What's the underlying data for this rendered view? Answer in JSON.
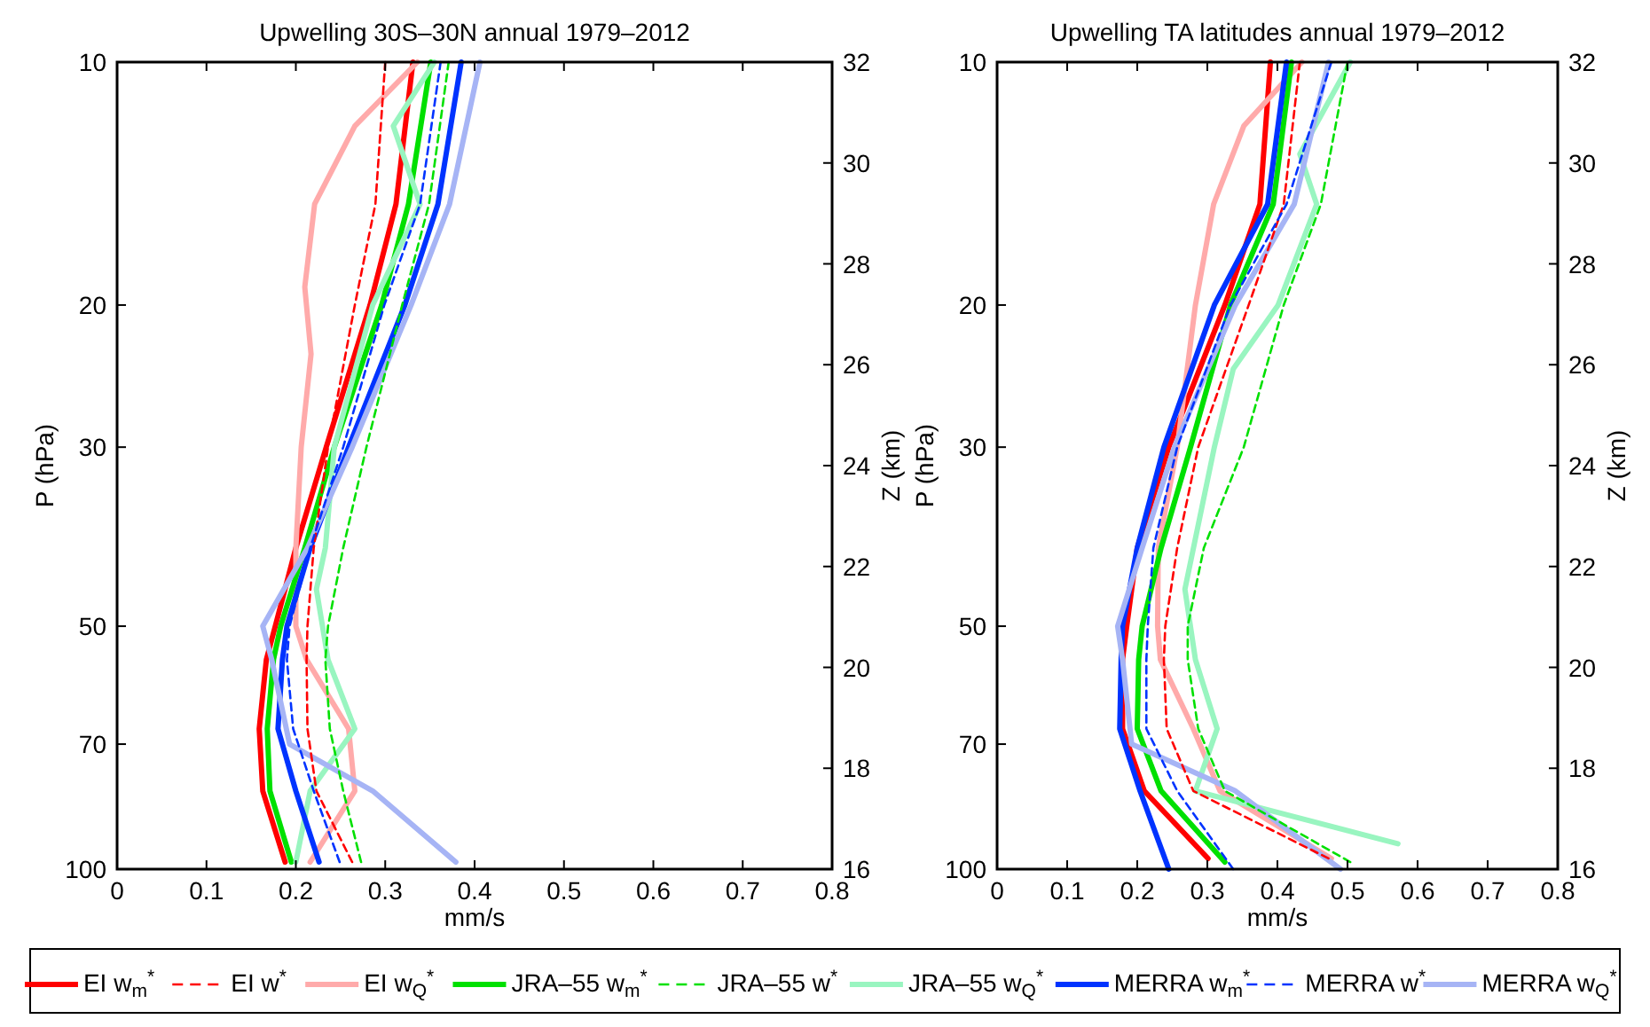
{
  "chart_data": [
    {
      "type": "line",
      "title": "Upwelling 30S–30N annual 1979–2012",
      "xlabel": "mm/s",
      "ylabel": "P (hPa)",
      "y2label": "Z (km)",
      "xlim": [
        0,
        0.8
      ],
      "xticks": [
        0,
        0.1,
        0.2,
        0.3,
        0.4,
        0.5,
        0.6,
        0.7,
        0.8
      ],
      "ylim": [
        100,
        10
      ],
      "yticks": [
        10,
        20,
        30,
        50,
        70,
        100
      ],
      "y2lim": [
        16,
        32
      ],
      "y2ticks": [
        16,
        18,
        20,
        22,
        24,
        26,
        28,
        30,
        32
      ],
      "log": "y",
      "legend": "bottom",
      "grid": false,
      "series": [
        {
          "name": "EI w$_{m}$$^{*}$",
          "color": "#ff0000",
          "line_style": "solid",
          "x": [
            0.331,
            0.312,
            0.283,
            0.234,
            0.2,
            0.177,
            0.167,
            0.159,
            0.163,
            0.188
          ],
          "values": [
            10,
            15,
            20,
            30,
            40,
            50,
            55,
            67,
            80,
            98
          ]
        },
        {
          "name": "EI w$^{*}$",
          "color": "#ff0000",
          "line_style": "dashed",
          "x": [
            0.3,
            0.289,
            0.266,
            0.236,
            0.22,
            0.213,
            0.212,
            0.213,
            0.223,
            0.263
          ],
          "values": [
            10,
            15,
            20,
            30,
            40,
            50,
            55,
            67,
            80,
            98
          ]
        },
        {
          "name": "EI w$_{Q}$$^{*}$",
          "color": "#ffaaaa",
          "line_style": "solid",
          "x": [
            0.336,
            0.266,
            0.221,
            0.21,
            0.217,
            0.206,
            0.2,
            0.2,
            0.212,
            0.259,
            0.266,
            0.216
          ],
          "values": [
            10,
            12,
            15,
            19,
            23,
            30,
            40,
            50,
            55,
            67,
            80,
            98
          ]
        },
        {
          "name": "JRA–55 w$_{m}$$^{*}$",
          "color": "#00e000",
          "line_style": "solid",
          "x": [
            0.351,
            0.326,
            0.296,
            0.243,
            0.21,
            0.183,
            0.175,
            0.168,
            0.171,
            0.195
          ],
          "values": [
            10,
            15,
            20,
            30,
            40,
            50,
            55,
            67,
            80,
            98
          ]
        },
        {
          "name": "JRA–55 w$^{*}$",
          "color": "#00e000",
          "line_style": "dashed",
          "x": [
            0.371,
            0.349,
            0.319,
            0.279,
            0.253,
            0.236,
            0.233,
            0.238,
            0.253,
            0.273
          ],
          "values": [
            10,
            15,
            20,
            30,
            40,
            50,
            55,
            67,
            80,
            98
          ]
        },
        {
          "name": "JRA–55 w$_{Q}$$^{*}$",
          "color": "#99f5c0",
          "line_style": "solid",
          "x": [
            0.355,
            0.309,
            0.339,
            0.286,
            0.243,
            0.233,
            0.223,
            0.236,
            0.266,
            0.216,
            0.2
          ],
          "values": [
            10,
            12,
            15,
            20,
            30,
            40,
            45,
            55,
            67,
            80,
            98
          ]
        },
        {
          "name": "MERRA w$_{m}$$^{*}$",
          "color": "#0033ff",
          "line_style": "solid",
          "x": [
            0.385,
            0.359,
            0.322,
            0.259,
            0.216,
            0.19,
            0.185,
            0.18,
            0.2,
            0.226
          ],
          "values": [
            10,
            15,
            20,
            30,
            40,
            50,
            55,
            67,
            80,
            98
          ]
        },
        {
          "name": "MERRA w$^{*}$",
          "color": "#0033ff",
          "line_style": "dashed",
          "x": [
            0.362,
            0.339,
            0.299,
            0.253,
            0.216,
            0.193,
            0.19,
            0.197,
            0.22,
            0.249
          ],
          "values": [
            10,
            15,
            20,
            30,
            40,
            50,
            55,
            67,
            80,
            98
          ]
        },
        {
          "name": "MERRA w$_{Q}$$^{*}$",
          "color": "#a6b4f5",
          "line_style": "solid",
          "x": [
            0.406,
            0.372,
            0.329,
            0.263,
            0.213,
            0.163,
            0.173,
            0.193,
            0.286,
            0.379
          ],
          "values": [
            10,
            15,
            20,
            30,
            40,
            50,
            55,
            70,
            80,
            98
          ]
        }
      ]
    },
    {
      "type": "line",
      "title": "Upwelling TA latitudes annual 1979–2012",
      "xlabel": "mm/s",
      "ylabel": "P (hPa)",
      "y2label": "Z (km)",
      "xlim": [
        0,
        0.8
      ],
      "xticks": [
        0,
        0.1,
        0.2,
        0.3,
        0.4,
        0.5,
        0.6,
        0.7,
        0.8
      ],
      "ylim": [
        100,
        10
      ],
      "yticks": [
        10,
        20,
        30,
        50,
        70,
        100
      ],
      "y2lim": [
        16,
        32
      ],
      "y2ticks": [
        16,
        18,
        20,
        22,
        24,
        26,
        28,
        30,
        32
      ],
      "log": "y",
      "grid": false,
      "series": [
        {
          "color": "#ff0000",
          "line_style": "solid",
          "x": [
            0.39,
            0.375,
            0.325,
            0.245,
            0.2,
            0.185,
            0.179,
            0.179,
            0.21,
            0.301
          ],
          "values": [
            10,
            15,
            20,
            30,
            40,
            50,
            55,
            67,
            80,
            97
          ]
        },
        {
          "color": "#ff0000",
          "line_style": "dashed",
          "x": [
            0.432,
            0.409,
            0.359,
            0.287,
            0.257,
            0.24,
            0.238,
            0.242,
            0.28,
            0.473
          ],
          "values": [
            10,
            15,
            20,
            30,
            40,
            50,
            55,
            67,
            80,
            97
          ]
        },
        {
          "color": "#ffaaaa",
          "line_style": "solid",
          "x": [
            0.435,
            0.352,
            0.309,
            0.283,
            0.257,
            0.23,
            0.229,
            0.233,
            0.28,
            0.318,
            0.477
          ],
          "values": [
            10,
            12,
            15,
            20,
            30,
            40,
            50,
            55,
            67,
            80,
            97
          ]
        },
        {
          "color": "#00e000",
          "line_style": "solid",
          "x": [
            0.42,
            0.394,
            0.333,
            0.276,
            0.234,
            0.207,
            0.202,
            0.2,
            0.234,
            0.325
          ],
          "values": [
            10,
            15,
            20,
            30,
            40,
            50,
            55,
            67,
            80,
            98
          ]
        },
        {
          "color": "#00e000",
          "line_style": "dashed",
          "x": [
            0.5,
            0.462,
            0.409,
            0.352,
            0.295,
            0.272,
            0.272,
            0.287,
            0.325,
            0.504
          ],
          "values": [
            10,
            15,
            20,
            30,
            40,
            50,
            55,
            67,
            80,
            98
          ]
        },
        {
          "color": "#99f5c0",
          "line_style": "solid",
          "x": [
            0.504,
            0.432,
            0.456,
            0.401,
            0.337,
            0.31,
            0.268,
            0.283,
            0.314,
            0.283,
            0.572
          ],
          "values": [
            10,
            13,
            15,
            20,
            24,
            30,
            45,
            55,
            67,
            80,
            93
          ]
        },
        {
          "color": "#0033ff",
          "line_style": "solid",
          "x": [
            0.413,
            0.386,
            0.31,
            0.238,
            0.2,
            0.179,
            0.177,
            0.175,
            0.204,
            0.245
          ],
          "values": [
            10,
            15,
            20,
            30,
            40,
            50,
            55,
            67,
            80,
            100
          ]
        },
        {
          "color": "#0033ff",
          "line_style": "dashed",
          "x": [
            0.477,
            0.413,
            0.333,
            0.257,
            0.223,
            0.215,
            0.213,
            0.213,
            0.257,
            0.337
          ],
          "values": [
            10,
            15,
            20,
            30,
            40,
            50,
            55,
            67,
            80,
            100
          ]
        },
        {
          "color": "#a6b4f5",
          "line_style": "solid",
          "x": [
            0.473,
            0.424,
            0.34,
            0.253,
            0.207,
            0.172,
            0.179,
            0.192,
            0.34,
            0.49
          ],
          "values": [
            10,
            15,
            20,
            30,
            40,
            50,
            55,
            70,
            80,
            100
          ]
        }
      ]
    }
  ]
}
